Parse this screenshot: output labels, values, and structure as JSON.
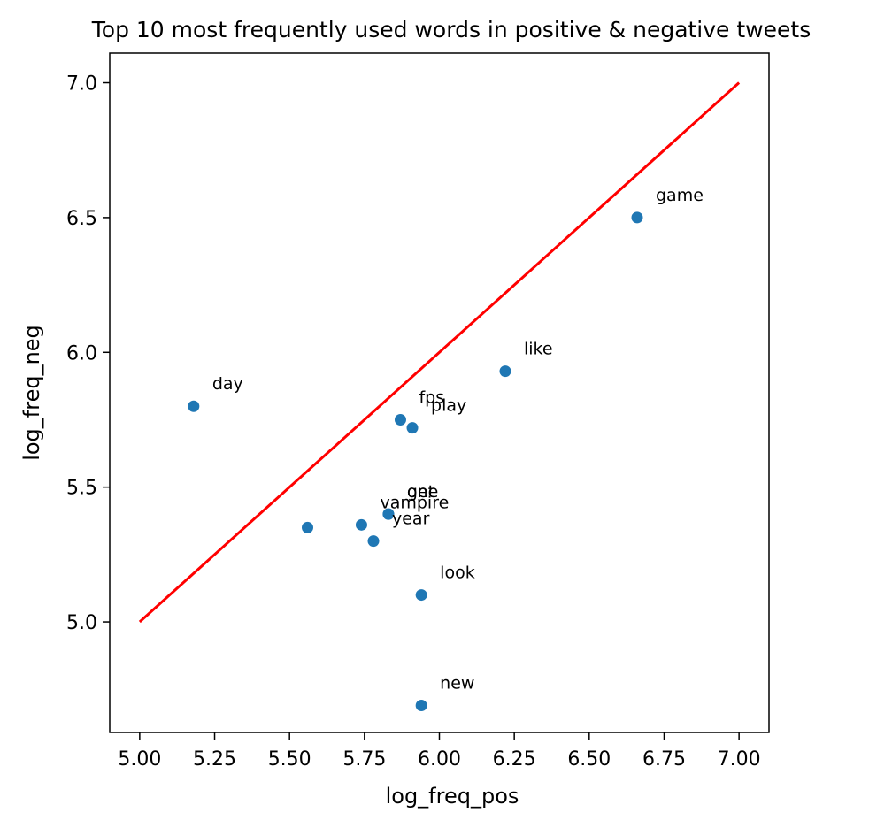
{
  "chart_data": {
    "type": "scatter",
    "title": "Top 10 most frequently used words in positive & negative tweets",
    "xlabel": "log_freq_pos",
    "ylabel": "log_freq_neg",
    "xlim": [
      4.9,
      7.1
    ],
    "ylim": [
      4.59,
      7.11
    ],
    "xticks": [
      "5.00",
      "5.25",
      "5.50",
      "5.75",
      "6.00",
      "6.25",
      "6.50",
      "6.75",
      "7.00"
    ],
    "yticks": [
      "5.0",
      "5.5",
      "6.0",
      "6.5",
      "7.0"
    ],
    "grid": false,
    "point_color": "#1f77b4",
    "line_color": "#ff0000",
    "reference_line": {
      "x": [
        5.0,
        7.0
      ],
      "y": [
        5.0,
        7.0
      ]
    },
    "points": [
      {
        "label": "game",
        "x": 6.66,
        "y": 6.5
      },
      {
        "label": "like",
        "x": 6.22,
        "y": 5.93
      },
      {
        "label": "day",
        "x": 5.18,
        "y": 5.8
      },
      {
        "label": "fps",
        "x": 5.87,
        "y": 5.75
      },
      {
        "label": "play",
        "x": 5.91,
        "y": 5.72
      },
      {
        "label": "get",
        "x": 5.83,
        "y": 5.4
      },
      {
        "label": "one",
        "x": 5.83,
        "y": 5.4
      },
      {
        "label": "vampire",
        "x": 5.74,
        "y": 5.36
      },
      {
        "label": "",
        "x": 5.56,
        "y": 5.35
      },
      {
        "label": "year",
        "x": 5.78,
        "y": 5.3
      },
      {
        "label": "look",
        "x": 5.94,
        "y": 5.1
      },
      {
        "label": "new",
        "x": 5.94,
        "y": 4.69
      }
    ]
  }
}
